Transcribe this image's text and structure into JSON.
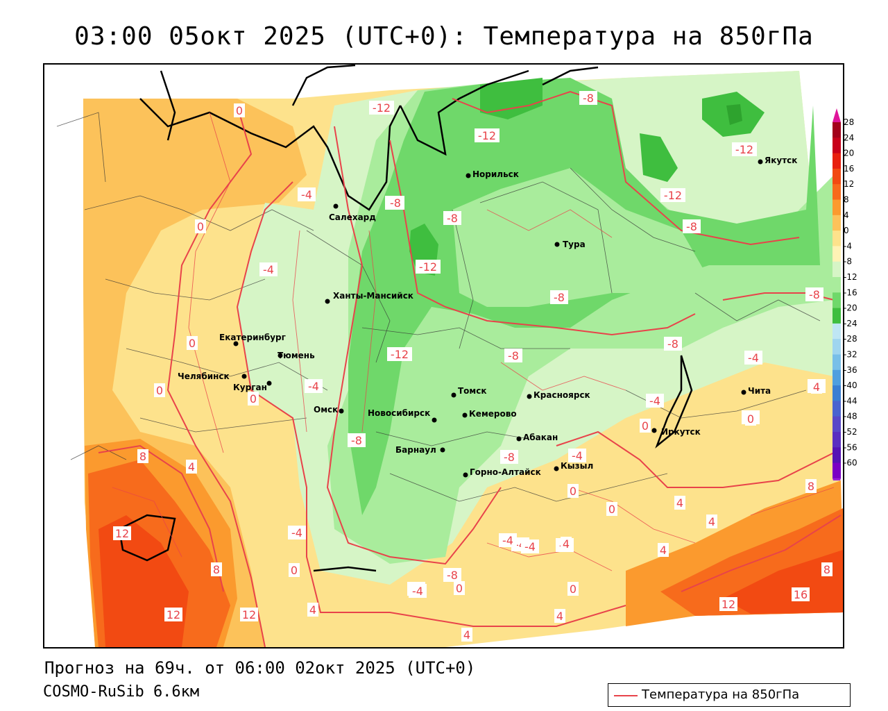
{
  "title": "03:00 05окт 2025 (UTC+0): Температура на 850гПа",
  "forecast_info": "Прогноз на 69ч. от 06:00 02окт 2025 (UTC+0)",
  "model_name": "COSMO-RuSib 6.6км",
  "legend": {
    "label": "Температура на 850гПа",
    "line_color": "#e8434a"
  },
  "colorbar": {
    "ticks": [
      "28",
      "24",
      "20",
      "16",
      "12",
      "8",
      "4",
      "0",
      "-4",
      "-8",
      "-12",
      "-16",
      "-20",
      "-24",
      "-28",
      "-32",
      "-36",
      "-40",
      "-44",
      "-48",
      "-52",
      "-56",
      "-60"
    ],
    "colors": [
      "#a3001a",
      "#c8001a",
      "#e8200f",
      "#f24a12",
      "#f76b1c",
      "#fb9a2e",
      "#fcc25a",
      "#fde28c",
      "#fff2b5",
      "#d6f5c6",
      "#a9ec9c",
      "#6fd86a",
      "#3fbe3f",
      "#bfe6f4",
      "#9fd5ef",
      "#78bfe8",
      "#4f9fdf",
      "#3a7fd2",
      "#4a63cf",
      "#5948c8",
      "#5a2ec0",
      "#5512b5",
      "#7a00c4"
    ],
    "top_color": "#e0159a",
    "bottom_color": "#9b1fd6"
  },
  "cities": [
    {
      "name": "Норильск"
    },
    {
      "name": "Якутск"
    },
    {
      "name": "Салехард"
    },
    {
      "name": "Тура"
    },
    {
      "name": "Ханты-Мансийск"
    },
    {
      "name": "Екатеринбург"
    },
    {
      "name": "Тюмень"
    },
    {
      "name": "Челябинск"
    },
    {
      "name": "Курган"
    },
    {
      "name": "Омск"
    },
    {
      "name": "Новосибирск"
    },
    {
      "name": "Томск"
    },
    {
      "name": "Красноярск"
    },
    {
      "name": "Кемерово"
    },
    {
      "name": "Барнаул"
    },
    {
      "name": "Абакан"
    },
    {
      "name": "Горно-Алтайск"
    },
    {
      "name": "Кызыл"
    },
    {
      "name": "Иркутск"
    },
    {
      "name": "Чита"
    }
  ],
  "isotherm_labels": [
    "-8",
    "-12",
    "-12",
    "-12",
    "-8",
    "-4",
    "-8",
    "-8",
    "-12",
    "-8",
    "-8",
    "-8",
    "-12",
    "-4",
    "-12",
    "-4",
    "-8",
    "-8",
    "-4",
    "-4",
    "-8",
    "-4",
    "-4",
    "-8",
    "-8",
    "-4",
    "-4",
    "-4",
    "-8",
    "-4",
    "-4",
    "-4",
    "-4",
    "0",
    "0",
    "0",
    "0",
    "0",
    "0",
    "0",
    "0",
    "0",
    "0",
    "0",
    "0",
    "0",
    "4",
    "4",
    "4",
    "4",
    "4",
    "4",
    "4",
    "4",
    "4",
    "8",
    "8",
    "8",
    "8",
    "12",
    "12",
    "12",
    "12",
    "16"
  ]
}
